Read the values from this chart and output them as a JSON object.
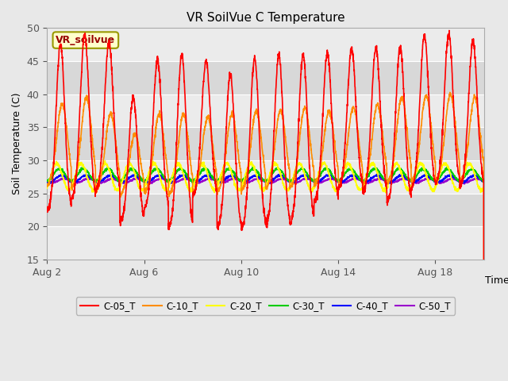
{
  "title": "VR SoilVue C Temperature",
  "ylabel": "Soil Temperature (C)",
  "xlabel": "Time",
  "ylim": [
    15,
    50
  ],
  "yticks": [
    15,
    20,
    25,
    30,
    35,
    40,
    45,
    50
  ],
  "xtick_labels": [
    "Aug 2",
    "Aug 6",
    "Aug 10",
    "Aug 14",
    "Aug 18"
  ],
  "xtick_positions": [
    2,
    6,
    10,
    14,
    18
  ],
  "fig_bg_color": "#e8e8e8",
  "plot_bg_color": "#e8e8e8",
  "band_light": "#f0f0f0",
  "band_dark": "#dcdcdc",
  "grid_color": "#ffffff",
  "series_colors": [
    "#ff0000",
    "#ff8c00",
    "#ffff00",
    "#00cc00",
    "#0000ff",
    "#9900cc"
  ],
  "series_labels": [
    "C-05_T",
    "C-10_T",
    "C-20_T",
    "C-30_T",
    "C-40_T",
    "C-50_T"
  ],
  "legend_box_color": "#ffffcc",
  "legend_box_edge": "#999900",
  "legend_text": "VR_soilvue",
  "n_days": 18,
  "samples_per_day": 144,
  "c05_peaks": [
    47.5,
    49.0,
    47.8,
    39.5,
    45.2,
    46.0,
    45.0,
    43.0,
    45.5,
    46.0,
    46.0,
    46.2,
    46.8,
    47.0,
    47.2,
    48.8,
    49.0,
    48.0
  ],
  "c05_mins": [
    22.0,
    24.0,
    25.2,
    20.5,
    22.5,
    19.5,
    24.5,
    19.5,
    19.5,
    20.0,
    20.2,
    23.5,
    25.5,
    24.8,
    23.5,
    25.5,
    26.2,
    25.8
  ],
  "c10_peaks": [
    38.5,
    39.5,
    37.0,
    34.0,
    37.0,
    37.0,
    36.5,
    37.0,
    37.5,
    37.5,
    38.0,
    37.5,
    38.0,
    38.5,
    39.5,
    39.8,
    40.0,
    39.5
  ],
  "c10_mins": [
    26.0,
    25.5,
    25.2,
    24.5,
    24.8,
    24.5,
    25.0,
    25.0,
    25.2,
    25.5,
    25.5,
    25.8,
    26.0,
    26.0,
    26.2,
    26.5,
    26.5,
    26.5
  ],
  "c20_base": 27.5,
  "c20_amp": 2.0,
  "c30_base": 27.8,
  "c30_amp": 0.9,
  "c40_base": 27.2,
  "c40_amp": 0.5,
  "c50_base": 26.9,
  "c50_amp": 0.3
}
